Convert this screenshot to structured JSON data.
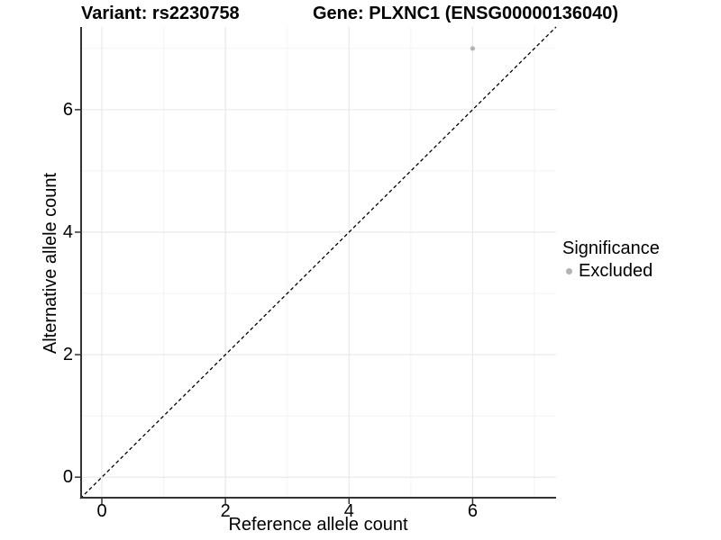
{
  "header": {
    "variant_title": "Variant: rs2230758",
    "gene_title": "Gene: PLXNC1 (ENSG00000136040)"
  },
  "legend": {
    "title": "Significance",
    "items": [
      {
        "label": "Excluded",
        "color": "#b3b3b3"
      }
    ]
  },
  "colors": {
    "background": "#ffffff",
    "grid_major": "#e7e7e7",
    "grid_minor": "#f2f2f2",
    "axis_line": "#333333",
    "tick_mark": "#333333",
    "text": "#000000",
    "identity_line": "#000000"
  },
  "chart_data": {
    "type": "scatter",
    "titles": [
      "Variant: rs2230758",
      "Gene: PLXNC1 (ENSG00000136040)"
    ],
    "xlabel": "Reference allele count",
    "ylabel": "Alternative allele count",
    "xlim": [
      -0.35,
      7.35
    ],
    "ylim": [
      -0.35,
      7.35
    ],
    "x_ticks": [
      0,
      2,
      4,
      6
    ],
    "y_ticks": [
      0,
      2,
      4,
      6
    ],
    "x_minor_ticks": [
      1,
      3,
      5,
      7
    ],
    "y_minor_ticks": [
      1,
      3,
      5,
      7
    ],
    "grid": true,
    "legend_position": "right",
    "reference_line": {
      "type": "identity y=x",
      "style": "dashed",
      "color": "#000000"
    },
    "series": [
      {
        "name": "Excluded",
        "color": "#b3b3b3",
        "points": [
          {
            "x": 6,
            "y": 7
          }
        ]
      }
    ]
  }
}
